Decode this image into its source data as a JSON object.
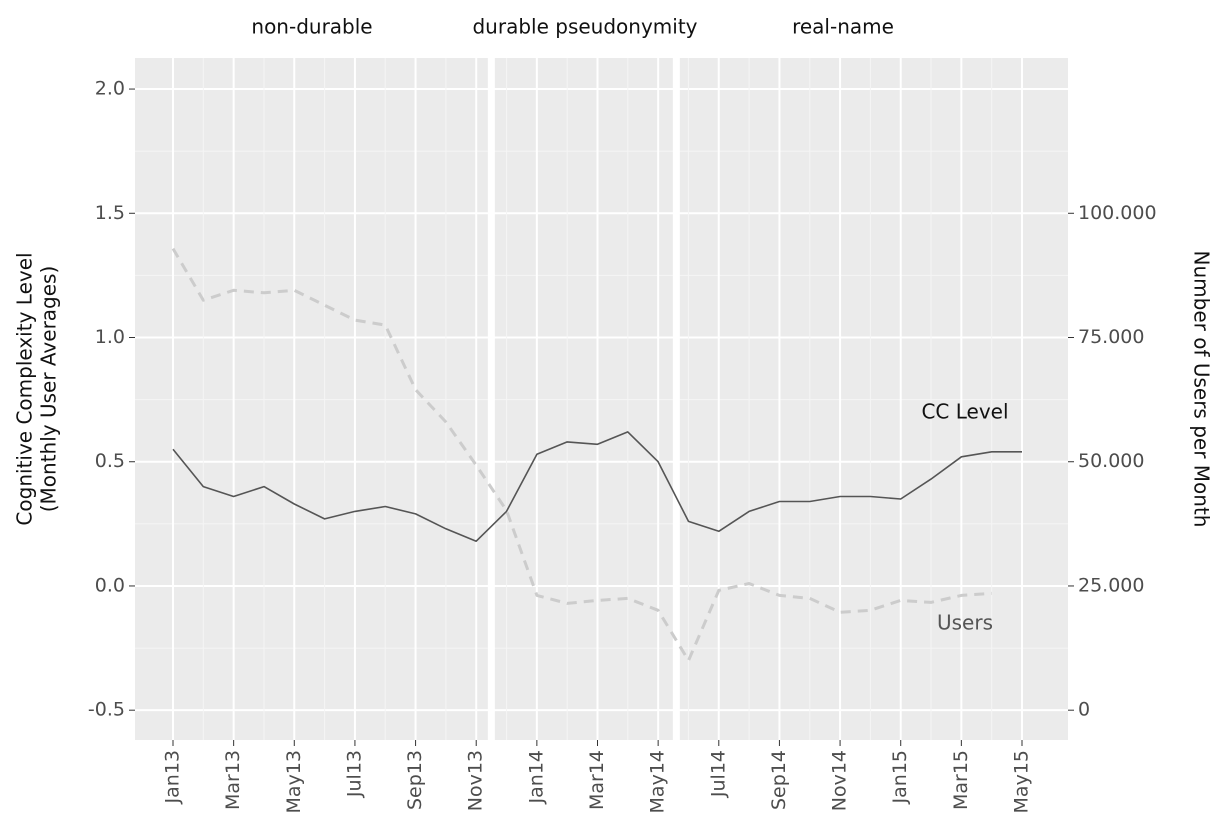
{
  "chart_data": {
    "type": "line",
    "annotations": [
      "non-durable",
      "durable pseudonymity",
      "real-name"
    ],
    "ylabel": [
      "Cognitive Complexity Level",
      "(Monthly User Averages)"
    ],
    "y2label": "Number of Users per Month",
    "categories": [
      "Jan13",
      null,
      "Mar13",
      null,
      "May13",
      null,
      "Jul13",
      null,
      "Sep13",
      null,
      "Nov13",
      null,
      "Jan14",
      null,
      "Mar14",
      null,
      "May14",
      null,
      "Jul14",
      null,
      "Sep14",
      null,
      "Nov14",
      null,
      "Jan15",
      null,
      "Mar15",
      null,
      "May15"
    ],
    "series": [
      {
        "name": "CC Level",
        "color": "#555555",
        "dash": false,
        "values": [
          0.55,
          0.4,
          0.36,
          0.4,
          0.33,
          0.27,
          0.3,
          0.32,
          0.29,
          0.23,
          0.18,
          0.3,
          0.53,
          0.58,
          0.57,
          0.62,
          0.5,
          0.26,
          0.22,
          0.3,
          0.34,
          0.34,
          0.36,
          0.36,
          0.35,
          0.43,
          0.52,
          0.54,
          0.54
        ]
      },
      {
        "name": "Users",
        "color": "#cccccc",
        "dash": true,
        "axis": "y2",
        "values": [
          92900,
          82500,
          84500,
          84000,
          84500,
          81500,
          78500,
          77500,
          64500,
          58000,
          49300,
          40200,
          23100,
          21500,
          22100,
          22500,
          20100,
          10000,
          24100,
          25500,
          23100,
          22500,
          19700,
          20100,
          22100,
          21700,
          23100,
          23500,
          null
        ]
      }
    ],
    "ylim": [
      -0.62,
      2.125
    ],
    "yticks": [
      {
        "value": -0.5,
        "label": "-0.5"
      },
      {
        "value": 0,
        "label": "0.0"
      },
      0.5,
      {
        "value": 1,
        "label": "1.0"
      },
      1.5,
      {
        "value": 2,
        "label": "2.0"
      }
    ],
    "y2lim": [
      -6000,
      131250
    ],
    "y2ticks": [
      0,
      {
        "value": 25000,
        "label": "25.000"
      },
      {
        "value": 50000,
        "label": "50.000"
      },
      {
        "value": 75000,
        "label": "75.000"
      },
      {
        "value": 100000,
        "label": "100.000"
      }
    ],
    "grid": true
  }
}
